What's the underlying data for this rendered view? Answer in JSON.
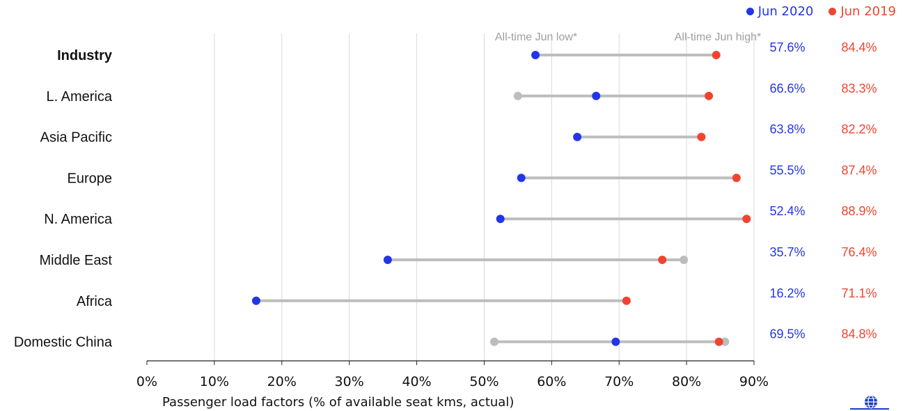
{
  "legend": [
    {
      "label": "Jun 2020",
      "color": "#2335e8"
    },
    {
      "label": "Jun 2019",
      "color": "#f04430"
    }
  ],
  "colors": {
    "jun2020": "#2335e8",
    "jun2019": "#f04430",
    "range": "#bdbdbd",
    "grid": "#d9d9d9"
  },
  "chart_data": {
    "type": "dot-range",
    "title": "",
    "xlabel": "Passenger load factors (% of available seat kms, actual)",
    "ylabel": "",
    "xlim": [
      0,
      90
    ],
    "xticks": [
      0,
      10,
      20,
      30,
      40,
      50,
      60,
      70,
      80,
      90
    ],
    "xtick_labels": [
      "0%",
      "10%",
      "20%",
      "30%",
      "40%",
      "50%",
      "60%",
      "70%",
      "80%",
      "90%"
    ],
    "annotations": [
      "All-time Jun low*",
      "All-time Jun high*"
    ],
    "grid": true,
    "legend_position": "top-right",
    "categories": [
      "Industry",
      "L. America",
      "Asia Pacific",
      "Europe",
      "N. America",
      "Middle East",
      "Africa",
      "Domestic China"
    ],
    "series": [
      {
        "name": "Jun 2020",
        "values": [
          57.6,
          66.6,
          63.8,
          55.5,
          52.4,
          35.7,
          16.2,
          69.5
        ],
        "labels": [
          "57.6%",
          "66.6%",
          "63.8%",
          "55.5%",
          "52.4%",
          "35.7%",
          "16.2%",
          "69.5%"
        ]
      },
      {
        "name": "Jun 2019",
        "values": [
          84.4,
          83.3,
          82.2,
          87.4,
          88.9,
          76.4,
          71.1,
          84.8
        ],
        "labels": [
          "84.4%",
          "83.3%",
          "82.2%",
          "87.4%",
          "88.9%",
          "76.4%",
          "71.1%",
          "84.8%"
        ]
      }
    ],
    "all_time_jun_low": [
      null,
      55.0,
      null,
      null,
      null,
      null,
      null,
      51.5
    ],
    "all_time_jun_high": [
      null,
      null,
      null,
      null,
      null,
      79.6,
      null,
      85.7
    ]
  }
}
